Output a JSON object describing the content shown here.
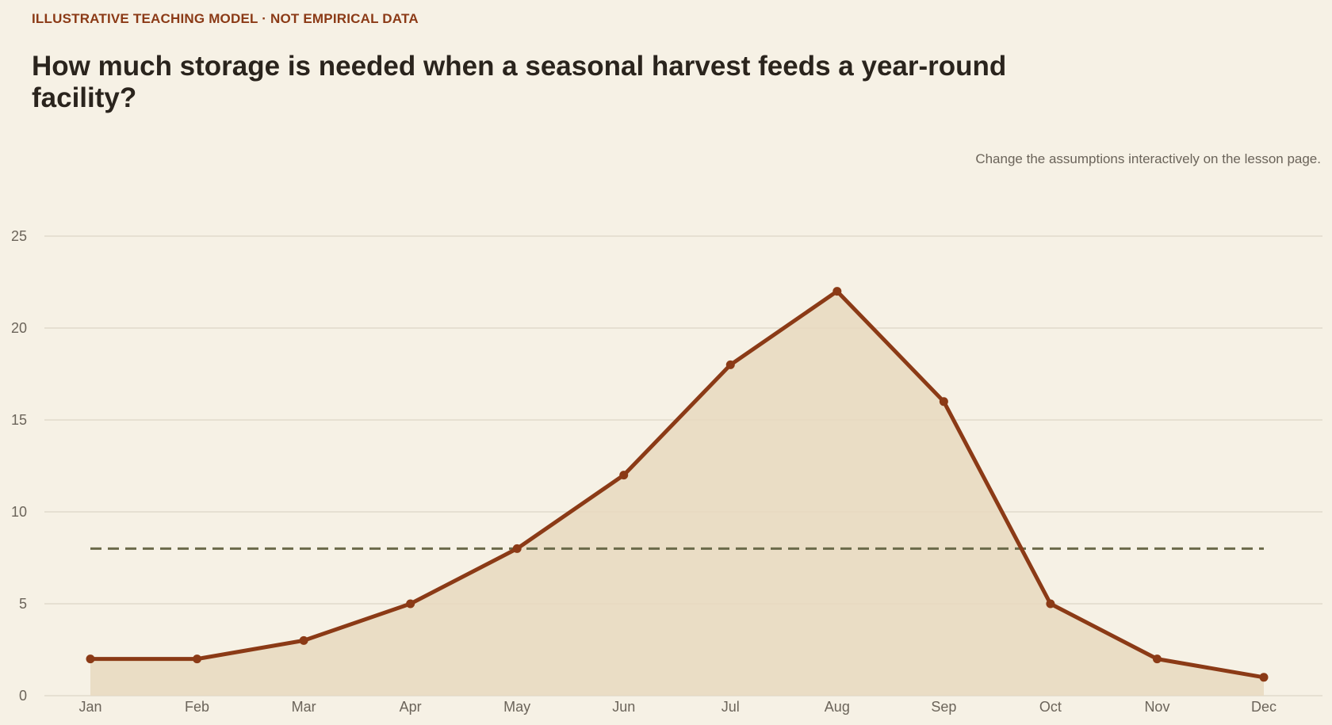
{
  "header": {
    "eyebrow": "ILLUSTRATIVE TEACHING MODEL · NOT EMPIRICAL DATA",
    "note": "Change the assumptions interactively on the lesson page."
  },
  "colors": {
    "background": "#f6f1e5",
    "accent": "#8b3a16",
    "harvest_line": "#8b3a16",
    "harvest_fill": "#e8d9c0",
    "demand_line": "#6b6a4a",
    "grid": "#ddd6c8",
    "tick_text": "#6b645a"
  },
  "chart_data": {
    "type": "area",
    "title": "How much storage is needed when a seasonal harvest feeds a year-round facility?",
    "xlabel": "",
    "ylabel": "",
    "categories": [
      "Jan",
      "Feb",
      "Mar",
      "Apr",
      "May",
      "Jun",
      "Jul",
      "Aug",
      "Sep",
      "Oct",
      "Nov",
      "Dec"
    ],
    "ylim": [
      0,
      25
    ],
    "yticks": [
      0,
      5,
      10,
      15,
      20,
      25
    ],
    "grid": true,
    "legend": "none",
    "series": [
      {
        "kind": "area-line",
        "values": [
          2,
          2,
          3,
          5,
          8,
          12,
          18,
          22,
          16,
          5,
          2,
          1
        ]
      },
      {
        "kind": "dashed-line",
        "values": [
          8,
          8,
          8,
          8,
          8,
          8,
          8,
          8,
          8,
          8,
          8,
          8
        ]
      }
    ]
  }
}
